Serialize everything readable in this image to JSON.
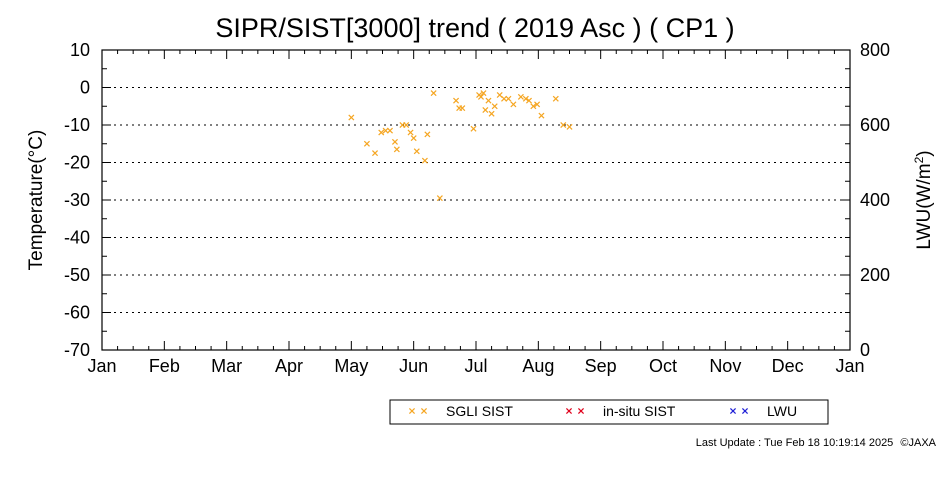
{
  "chart_data": {
    "type": "scatter",
    "title": "SIPR/SIST[3000] trend ( 2019 Asc ) ( CP1 )",
    "ylabel": "Temperature(°C)",
    "y2label_prefix": "LWU(W/m",
    "y2label_sup": "2",
    "y2label_suffix": ")",
    "ylim": [
      -70,
      10
    ],
    "y2lim": [
      0,
      800
    ],
    "yticks": [
      "10",
      "0",
      "-10",
      "-20",
      "-30",
      "-40",
      "-50",
      "-60",
      "-70"
    ],
    "y2ticks": [
      "800",
      "600",
      "400",
      "200",
      "0"
    ],
    "xticks": [
      "Jan",
      "Feb",
      "Mar",
      "Apr",
      "May",
      "Jun",
      "Jul",
      "Aug",
      "Sep",
      "Oct",
      "Nov",
      "Dec",
      "Jan"
    ],
    "xlim": [
      0,
      12
    ],
    "grid": "dotted horizontal",
    "series": [
      {
        "name": "SGLI SIST",
        "color": "#f5a623",
        "marker": "x",
        "points": [
          [
            4.0,
            -8
          ],
          [
            4.25,
            -15
          ],
          [
            4.38,
            -17.5
          ],
          [
            4.48,
            -12
          ],
          [
            4.55,
            -11.5
          ],
          [
            4.62,
            -11.5
          ],
          [
            4.7,
            -14.5
          ],
          [
            4.73,
            -16.5
          ],
          [
            4.82,
            -10
          ],
          [
            4.88,
            -10
          ],
          [
            4.95,
            -12
          ],
          [
            5.0,
            -13.5
          ],
          [
            5.05,
            -17
          ],
          [
            5.18,
            -19.5
          ],
          [
            5.22,
            -12.5
          ],
          [
            5.32,
            -1.5
          ],
          [
            5.42,
            -29.5
          ],
          [
            5.68,
            -3.5
          ],
          [
            5.73,
            -5.5
          ],
          [
            5.78,
            -5.5
          ],
          [
            5.96,
            -11
          ],
          [
            6.05,
            -2
          ],
          [
            6.08,
            -2.5
          ],
          [
            6.12,
            -1.5
          ],
          [
            6.15,
            -6
          ],
          [
            6.2,
            -3.5
          ],
          [
            6.25,
            -7
          ],
          [
            6.3,
            -5
          ],
          [
            6.38,
            -2
          ],
          [
            6.45,
            -3
          ],
          [
            6.52,
            -3
          ],
          [
            6.6,
            -4.5
          ],
          [
            6.72,
            -2.5
          ],
          [
            6.8,
            -3
          ],
          [
            6.85,
            -3.5
          ],
          [
            6.92,
            -5
          ],
          [
            6.98,
            -4.5
          ],
          [
            7.05,
            -7.5
          ],
          [
            7.28,
            -3
          ],
          [
            7.4,
            -10
          ],
          [
            7.5,
            -10.5
          ]
        ]
      },
      {
        "name": "in-situ SIST",
        "color": "#e0001b",
        "marker": "x",
        "points": []
      },
      {
        "name": "LWU",
        "color": "#1f1fd6",
        "marker": "x",
        "points": []
      }
    ]
  },
  "footer": {
    "update": "Last Update : Tue Feb 18 10:19:14 2025",
    "copyright": "©JAXA"
  }
}
